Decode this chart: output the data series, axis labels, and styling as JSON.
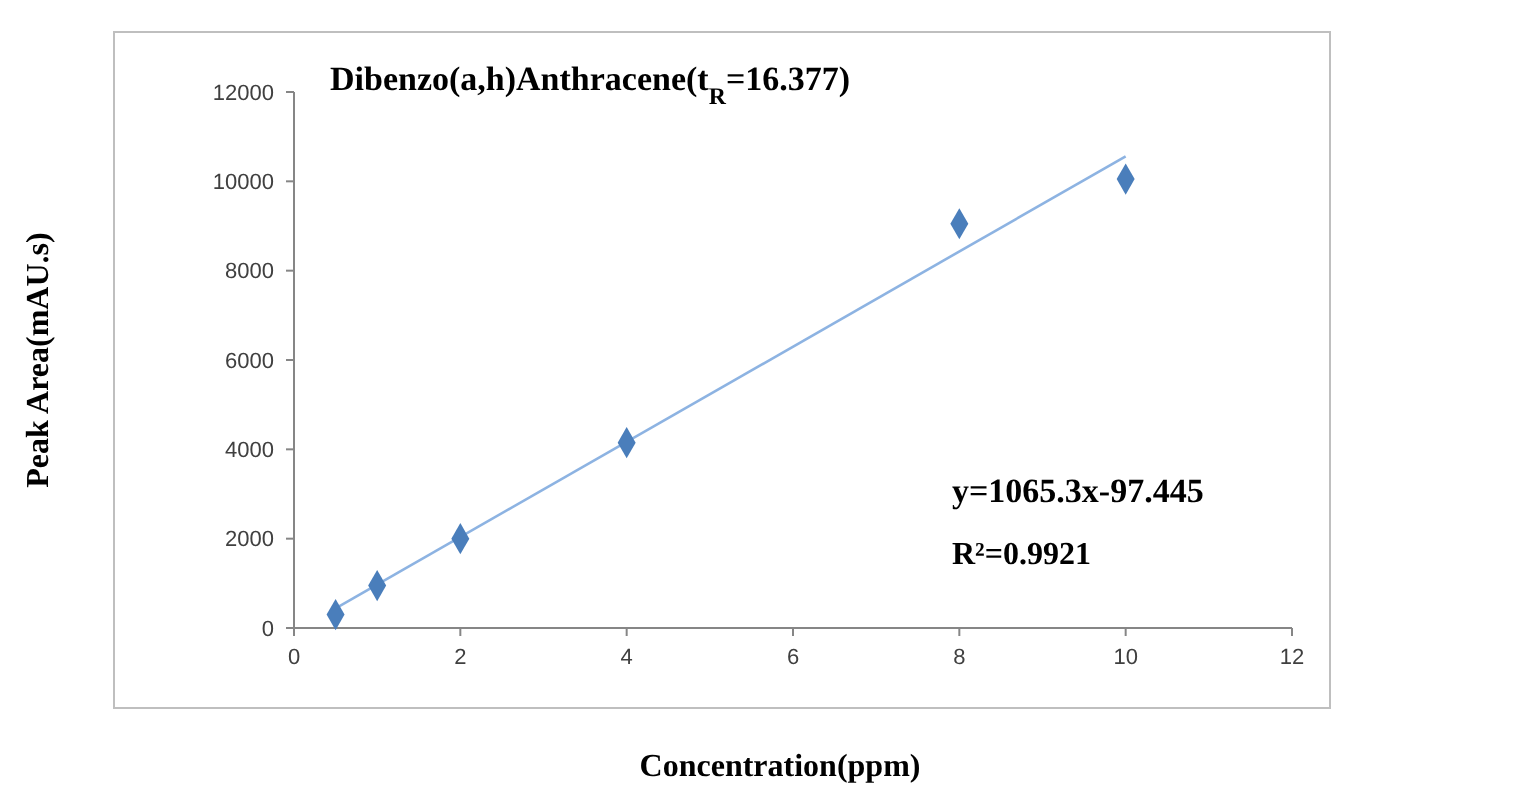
{
  "chart_data": {
    "type": "scatter",
    "title": "Dibenzo(a,h)Anthracene(t$_{R}$=16.377)",
    "xlabel": "Concentration(ppm)",
    "ylabel": "Peak Area(mAU.s)",
    "xlim": [
      0,
      12
    ],
    "xticks": [
      0,
      2,
      4,
      6,
      8,
      10,
      12
    ],
    "ylim": [
      0,
      12000
    ],
    "yticks": [
      0,
      2000,
      4000,
      6000,
      8000,
      10000,
      12000
    ],
    "grid": false,
    "series": [
      {
        "marker": "diamond",
        "color": "#4a7ebb",
        "x": [
          0.5,
          1,
          2,
          4,
          8,
          10
        ],
        "values": [
          300,
          950,
          2000,
          4150,
          9050,
          10050
        ]
      },
      {
        "type": "line",
        "color": "#8db3e2",
        "x": [
          0.5,
          10
        ],
        "values": [
          440,
          10560
        ]
      }
    ],
    "annotations": [
      "y=1065.3x-97.445",
      "R²=0.9921"
    ]
  }
}
